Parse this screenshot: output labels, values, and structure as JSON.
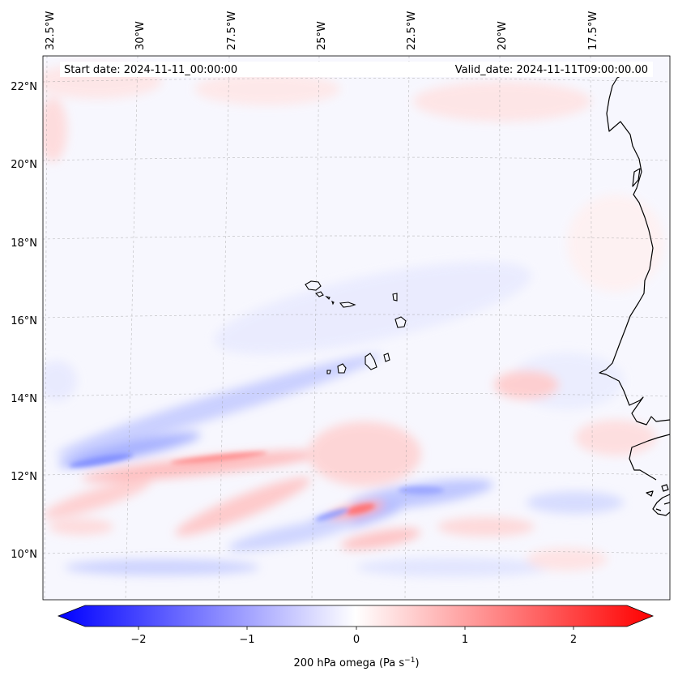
{
  "map": {
    "start_date_label": "Start date: 2024-11-11_00:00:00",
    "valid_date_label": "Valid_date: 2024-11-11T09:00:00.00",
    "lon_labels": [
      "32.5°W",
      "30°W",
      "27.5°W",
      "25°W",
      "22.5°W",
      "20°W",
      "17.5°W"
    ],
    "lat_labels": [
      "22°N",
      "20°N",
      "18°N",
      "16°N",
      "14°N",
      "12°N",
      "10°N"
    ],
    "features": {
      "cape-verde-islands": "Cape Verde Islands",
      "west-africa-coastline": "West Africa coastline"
    }
  },
  "colorbar": {
    "label": "200 hPa omega (Pa s",
    "label_exp": "−1",
    "label_suffix": ")",
    "tick_labels": [
      "−2",
      "−1",
      "0",
      "1",
      "2"
    ],
    "tick_values": [
      -2,
      -1,
      0,
      1,
      2
    ],
    "range": [
      -2.5,
      2.5
    ],
    "extend": "both",
    "colormap": "bwr",
    "colors": {
      "negative": "#0000ff",
      "zero": "#ffffff",
      "positive": "#ff0000"
    }
  },
  "colors": {
    "ocean_background": "#f7f7fe",
    "coastline": "#000000",
    "gridline": "#9a9a9a",
    "ascent_blue": "#b9c2ff",
    "descent_red": "#ffc4c4"
  }
}
